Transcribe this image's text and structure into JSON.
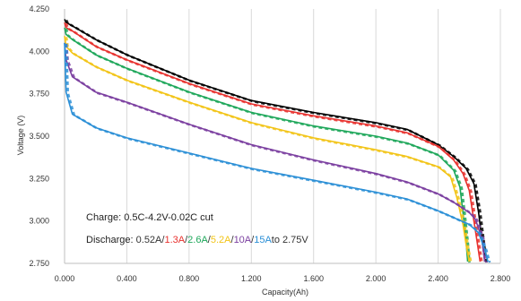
{
  "chart_data": {
    "type": "line",
    "xlabel": "Capacity(Ah)",
    "ylabel": "Voltage (V)",
    "xlim": [
      0,
      2.8
    ],
    "ylim": [
      2.75,
      4.25
    ],
    "xticks": [
      "0.000",
      "0.400",
      "0.800",
      "1.200",
      "1.600",
      "2.000",
      "2.400",
      "2.800"
    ],
    "yticks": [
      "2.750",
      "3.000",
      "3.250",
      "3.500",
      "3.750",
      "4.000",
      "4.250"
    ],
    "grid": "vertical",
    "annotations": {
      "charge": "Charge: 0.5C-4.2V-0.02C cut",
      "discharge_prefix": "Discharge: ",
      "discharge_parts": [
        {
          "text": "0.52A",
          "color": "#333333"
        },
        {
          "text": "/",
          "color": "#333333"
        },
        {
          "text": "1.3A",
          "color": "#e8312e"
        },
        {
          "text": "/",
          "color": "#333333"
        },
        {
          "text": "2.6A",
          "color": "#1ea75a"
        },
        {
          "text": "/",
          "color": "#333333"
        },
        {
          "text": "5.2A",
          "color": "#f2c417"
        },
        {
          "text": "/",
          "color": "#333333"
        },
        {
          "text": "10A",
          "color": "#7b3fa0"
        },
        {
          "text": "/",
          "color": "#333333"
        },
        {
          "text": "15A",
          "color": "#2b8fd6"
        },
        {
          "text": "to 2.75V",
          "color": "#333333"
        }
      ]
    },
    "series": [
      {
        "color": "#000000",
        "x": [
          0,
          0.01,
          0.05,
          0.2,
          0.4,
          0.8,
          1.2,
          1.6,
          2.0,
          2.2,
          2.4,
          2.5,
          2.58,
          2.63,
          2.66,
          2.68,
          2.7
        ],
        "y": [
          4.19,
          4.17,
          4.15,
          4.07,
          3.98,
          3.83,
          3.71,
          3.64,
          3.58,
          3.54,
          3.45,
          3.38,
          3.31,
          3.22,
          3.05,
          2.9,
          2.76
        ]
      },
      {
        "color": "#e8312e",
        "x": [
          0,
          0.01,
          0.05,
          0.2,
          0.4,
          0.8,
          1.2,
          1.6,
          2.0,
          2.2,
          2.4,
          2.5,
          2.56,
          2.6,
          2.63,
          2.65,
          2.67
        ],
        "y": [
          4.17,
          4.14,
          4.12,
          4.03,
          3.95,
          3.81,
          3.69,
          3.62,
          3.56,
          3.52,
          3.44,
          3.36,
          3.28,
          3.18,
          3.0,
          2.88,
          2.76
        ]
      },
      {
        "color": "#1ea75a",
        "x": [
          0,
          0.01,
          0.05,
          0.2,
          0.4,
          0.8,
          1.2,
          1.6,
          2.0,
          2.2,
          2.4,
          2.5,
          2.54,
          2.56,
          2.58,
          2.59
        ],
        "y": [
          4.14,
          4.1,
          4.07,
          3.98,
          3.9,
          3.76,
          3.64,
          3.56,
          3.5,
          3.46,
          3.39,
          3.3,
          3.2,
          3.05,
          2.88,
          2.76
        ]
      },
      {
        "color": "#f2c417",
        "x": [
          0,
          0.01,
          0.05,
          0.2,
          0.4,
          0.8,
          1.2,
          1.6,
          2.0,
          2.2,
          2.4,
          2.48,
          2.52,
          2.56,
          2.58,
          2.6
        ],
        "y": [
          4.09,
          4.03,
          3.99,
          3.91,
          3.83,
          3.7,
          3.58,
          3.49,
          3.42,
          3.38,
          3.32,
          3.26,
          3.14,
          2.98,
          2.86,
          2.76
        ]
      },
      {
        "color": "#7b3fa0",
        "x": [
          0,
          0.01,
          0.05,
          0.2,
          0.4,
          0.8,
          1.2,
          1.6,
          2.0,
          2.2,
          2.4,
          2.5,
          2.6,
          2.64,
          2.68,
          2.7
        ],
        "y": [
          4.05,
          3.95,
          3.85,
          3.76,
          3.7,
          3.57,
          3.45,
          3.36,
          3.28,
          3.23,
          3.16,
          3.11,
          3.05,
          3.01,
          2.9,
          2.76
        ]
      },
      {
        "color": "#2b8fd6",
        "x": [
          0,
          0.01,
          0.05,
          0.2,
          0.4,
          0.8,
          1.2,
          1.6,
          2.0,
          2.2,
          2.4,
          2.5,
          2.6,
          2.66,
          2.7,
          2.72
        ],
        "y": [
          4.05,
          3.76,
          3.63,
          3.55,
          3.49,
          3.4,
          3.31,
          3.24,
          3.17,
          3.13,
          3.06,
          3.02,
          2.98,
          2.93,
          2.83,
          2.76
        ]
      }
    ]
  }
}
